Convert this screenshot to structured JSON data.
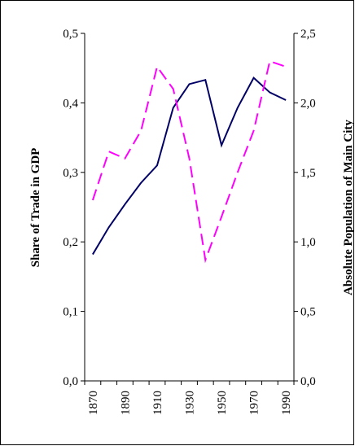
{
  "chart_data": {
    "type": "line",
    "title": "",
    "x": [
      1870,
      1880,
      1890,
      1900,
      1910,
      1920,
      1930,
      1940,
      1950,
      1960,
      1970,
      1980,
      1990
    ],
    "x_ticks": [
      "1870",
      "1890",
      "1910",
      "1930",
      "1950",
      "1970",
      "1990"
    ],
    "xlim": [
      1865,
      1995
    ],
    "y_left": {
      "label": "Share of Trade in GDP",
      "ylim": [
        0.0,
        0.5
      ],
      "ticks": [
        "0,0",
        "0,1",
        "0,2",
        "0,3",
        "0,4",
        "0,5"
      ]
    },
    "y_right": {
      "label": "Absolute Population of Main City",
      "ylim": [
        0.0,
        2.5
      ],
      "ticks": [
        "0,0",
        "0,5",
        "1,0",
        "1,5",
        "2,0",
        "2,5"
      ]
    },
    "series": [
      {
        "axis": "left",
        "color": "#000066",
        "style": "solid",
        "values": [
          0.182,
          0.221,
          0.254,
          0.285,
          0.31,
          0.393,
          0.427,
          0.433,
          0.339,
          0.393,
          0.436,
          0.415,
          0.404
        ]
      },
      {
        "axis": "right",
        "color": "#ff00ff",
        "style": "dashed",
        "values": [
          1.3,
          1.65,
          1.6,
          1.8,
          2.26,
          2.1,
          1.6,
          0.87,
          1.18,
          1.5,
          1.8,
          2.3,
          2.26
        ]
      }
    ],
    "grid": false,
    "legend": "none"
  }
}
